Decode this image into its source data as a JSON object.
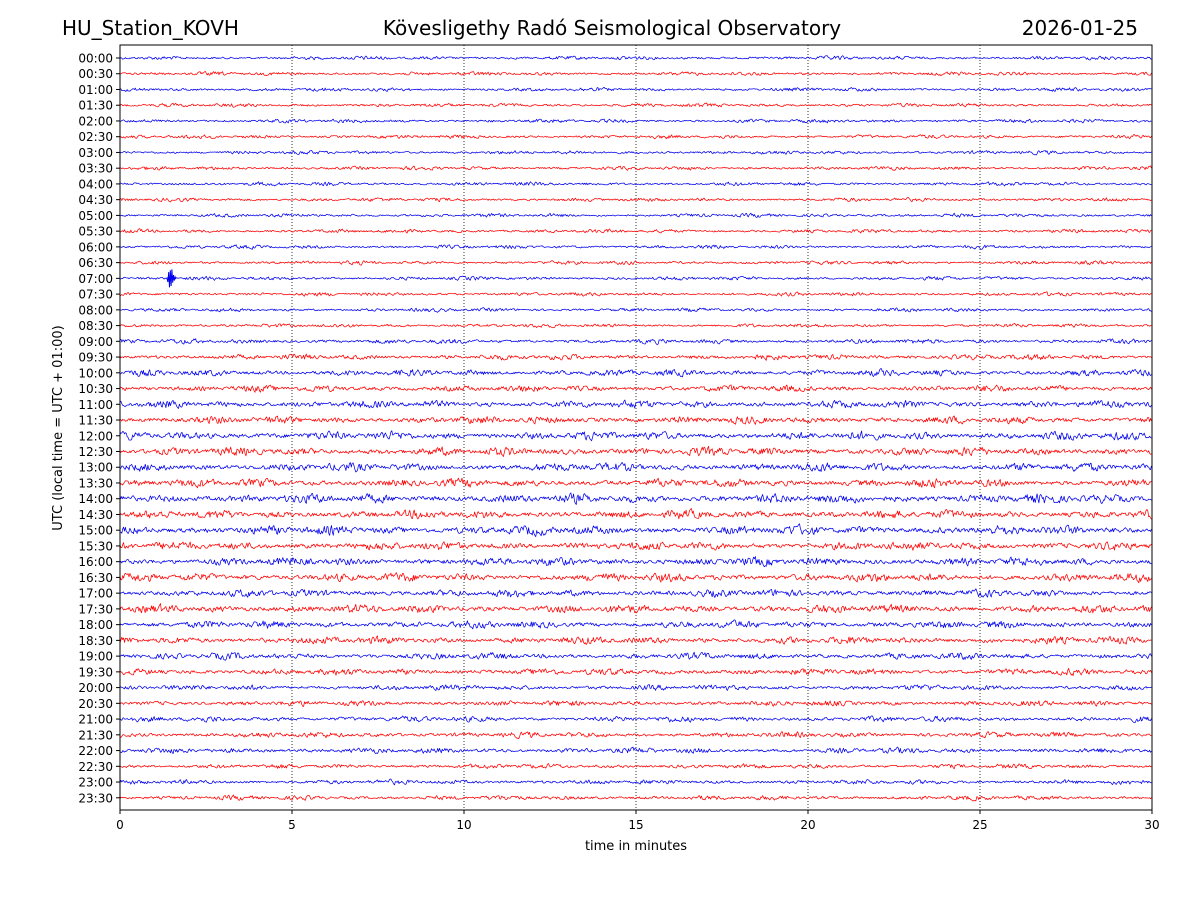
{
  "chart_data": {
    "type": "line",
    "station": "HU_Station_KOVH",
    "title": "Kövesligethy Radó Seismological Observatory",
    "date": "2026-01-25",
    "xlabel": "time in minutes",
    "ylabel": "UTC (local time = UTC + 01:00)",
    "xlim": [
      0,
      30
    ],
    "x_ticks": [
      "0",
      "5",
      "10",
      "15",
      "20",
      "25",
      "30"
    ],
    "grid": "vertical dotted lines at every 5 minutes",
    "series_colors": [
      "#0000ee",
      "#ff0000"
    ],
    "rows": [
      {
        "label": "00:00",
        "amplitude": 2
      },
      {
        "label": "00:30",
        "amplitude": 2
      },
      {
        "label": "01:00",
        "amplitude": 2
      },
      {
        "label": "01:30",
        "amplitude": 2
      },
      {
        "label": "02:00",
        "amplitude": 2
      },
      {
        "label": "02:30",
        "amplitude": 2
      },
      {
        "label": "03:00",
        "amplitude": 2
      },
      {
        "label": "03:30",
        "amplitude": 2
      },
      {
        "label": "04:00",
        "amplitude": 2
      },
      {
        "label": "04:30",
        "amplitude": 2
      },
      {
        "label": "05:00",
        "amplitude": 2
      },
      {
        "label": "05:30",
        "amplitude": 2
      },
      {
        "label": "06:00",
        "amplitude": 2
      },
      {
        "label": "06:30",
        "amplitude": 2
      },
      {
        "label": "07:00",
        "amplitude": 2,
        "event_minute": 1.45,
        "event_amplitude": 9
      },
      {
        "label": "07:30",
        "amplitude": 2
      },
      {
        "label": "08:00",
        "amplitude": 2
      },
      {
        "label": "08:30",
        "amplitude": 2
      },
      {
        "label": "09:00",
        "amplitude": 2.5
      },
      {
        "label": "09:30",
        "amplitude": 3
      },
      {
        "label": "10:00",
        "amplitude": 3.5
      },
      {
        "label": "10:30",
        "amplitude": 3.5
      },
      {
        "label": "11:00",
        "amplitude": 4
      },
      {
        "label": "11:30",
        "amplitude": 4
      },
      {
        "label": "12:00",
        "amplitude": 4.5
      },
      {
        "label": "12:30",
        "amplitude": 4.5
      },
      {
        "label": "13:00",
        "amplitude": 4.5
      },
      {
        "label": "13:30",
        "amplitude": 4.5
      },
      {
        "label": "14:00",
        "amplitude": 5
      },
      {
        "label": "14:30",
        "amplitude": 4.5
      },
      {
        "label": "15:00",
        "amplitude": 5
      },
      {
        "label": "15:30",
        "amplitude": 4.5
      },
      {
        "label": "16:00",
        "amplitude": 4.5
      },
      {
        "label": "16:30",
        "amplitude": 4.5
      },
      {
        "label": "17:00",
        "amplitude": 4
      },
      {
        "label": "17:30",
        "amplitude": 4.5
      },
      {
        "label": "18:00",
        "amplitude": 4
      },
      {
        "label": "18:30",
        "amplitude": 4
      },
      {
        "label": "19:00",
        "amplitude": 3.5
      },
      {
        "label": "19:30",
        "amplitude": 3.5
      },
      {
        "label": "20:00",
        "amplitude": 3
      },
      {
        "label": "20:30",
        "amplitude": 3
      },
      {
        "label": "21:00",
        "amplitude": 3
      },
      {
        "label": "21:30",
        "amplitude": 3
      },
      {
        "label": "22:00",
        "amplitude": 3
      },
      {
        "label": "22:30",
        "amplitude": 2.5
      },
      {
        "label": "23:00",
        "amplitude": 2.5
      },
      {
        "label": "23:30",
        "amplitude": 2.5
      }
    ]
  }
}
